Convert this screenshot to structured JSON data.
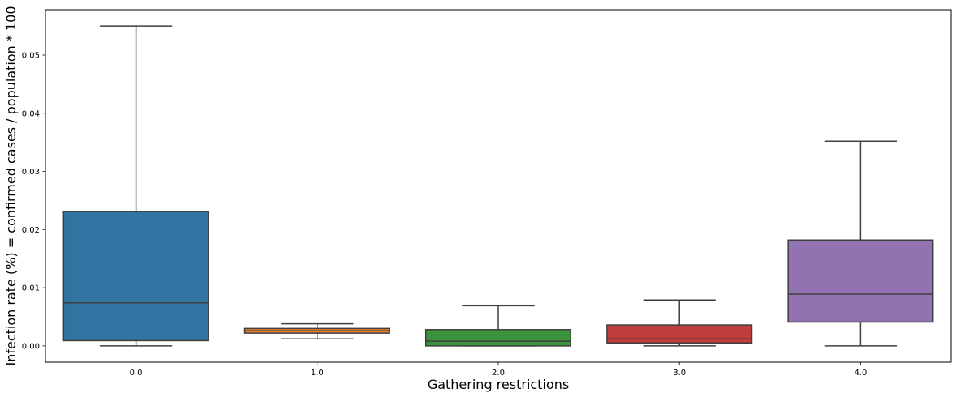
{
  "chart_data": {
    "type": "box",
    "title": "",
    "xlabel": "Gathering restrictions",
    "ylabel": "Infection rate (%) = confirmed cases / population * 100",
    "categories": [
      "0.0",
      "1.0",
      "2.0",
      "3.0",
      "4.0"
    ],
    "ylim": [
      -0.0028,
      0.0578
    ],
    "yticks": [
      0.0,
      0.01,
      0.02,
      0.03,
      0.04,
      0.05
    ],
    "ytick_labels": [
      "0.00",
      "0.01",
      "0.02",
      "0.03",
      "0.04",
      "0.05"
    ],
    "grid": false,
    "boxes": [
      {
        "category": "0.0",
        "whisker_low": 0.0,
        "q1": 0.0009,
        "median": 0.0074,
        "q3": 0.0231,
        "whisker_high": 0.055,
        "color": "#3274a1"
      },
      {
        "category": "1.0",
        "whisker_low": 0.0012,
        "q1": 0.0022,
        "median": 0.0026,
        "q3": 0.003,
        "whisker_high": 0.0038,
        "color": "#e1812c"
      },
      {
        "category": "2.0",
        "whisker_low": 0.0,
        "q1": 0.0,
        "median": 0.0008,
        "q3": 0.0028,
        "whisker_high": 0.0069,
        "color": "#3a923a"
      },
      {
        "category": "3.0",
        "whisker_low": 0.0,
        "q1": 0.0005,
        "median": 0.0012,
        "q3": 0.0036,
        "whisker_high": 0.0079,
        "color": "#c03d3e"
      },
      {
        "category": "4.0",
        "whisker_low": 0.0,
        "q1": 0.0041,
        "median": 0.0089,
        "q3": 0.0182,
        "whisker_high": 0.0352,
        "color": "#9372b2"
      }
    ]
  }
}
